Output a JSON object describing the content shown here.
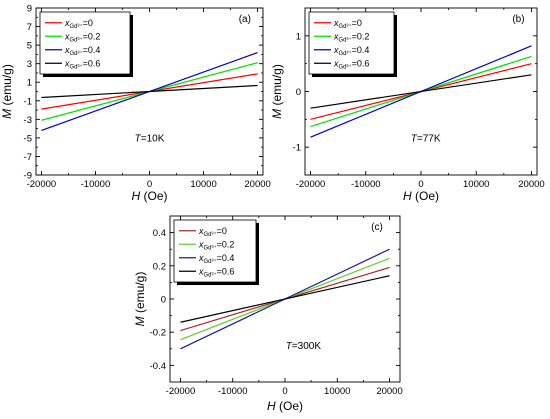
{
  "chart_data": [
    {
      "type": "line",
      "panel_label": "(a)",
      "annotation": {
        "italic": "T",
        "text": "=10K"
      },
      "xlabel": {
        "italic": "H",
        "text": " (Oe)"
      },
      "ylabel": {
        "italic": "M",
        "text": " (emu/g)"
      },
      "xlim": [
        -21000,
        21000
      ],
      "ylim": [
        -9,
        9
      ],
      "xticks": [
        -20000,
        -10000,
        0,
        10000,
        20000
      ],
      "yticks": [
        -9,
        -7,
        -5,
        -3,
        -1,
        1,
        3,
        5,
        7,
        9
      ],
      "legend_position": "top-left",
      "series": [
        {
          "name": {
            "base": "x",
            "sub": "Gd³⁺",
            "value": "=0"
          },
          "color": "#ff0000",
          "x": [
            -20000,
            20000
          ],
          "y": [
            -1.9,
            1.9
          ]
        },
        {
          "name": {
            "base": "x",
            "sub": "Gd³⁺",
            "value": "=0.2"
          },
          "color": "#00e000",
          "x": [
            -20000,
            20000
          ],
          "y": [
            -3.1,
            3.1
          ]
        },
        {
          "name": {
            "base": "x",
            "sub": "Gd³⁺",
            "value": "=0.4"
          },
          "color": "#0000c8",
          "x": [
            -20000,
            20000
          ],
          "y": [
            -4.2,
            4.2
          ]
        },
        {
          "name": {
            "base": "x",
            "sub": "Gd³⁺",
            "value": "=0.6"
          },
          "color": "#000000",
          "x": [
            -20000,
            20000
          ],
          "y": [
            -0.65,
            0.65
          ]
        }
      ]
    },
    {
      "type": "line",
      "panel_label": "(b)",
      "annotation": {
        "italic": "T",
        "text": "=77K"
      },
      "xlabel": {
        "italic": "H",
        "text": " (Oe)"
      },
      "ylabel": {
        "italic": "M",
        "text": " (emu/g)"
      },
      "xlim": [
        -21000,
        21000
      ],
      "ylim": [
        -1.5,
        1.5
      ],
      "xticks": [
        -20000,
        -10000,
        0,
        10000,
        20000
      ],
      "yticks": [
        -1,
        0,
        1
      ],
      "legend_position": "top-left",
      "series": [
        {
          "name": {
            "base": "x",
            "sub": "Gd³⁺",
            "value": "=0"
          },
          "color": "#ff0000",
          "x": [
            -20000,
            20000
          ],
          "y": [
            -0.5,
            0.5
          ]
        },
        {
          "name": {
            "base": "x",
            "sub": "Gd³⁺",
            "value": "=0.2"
          },
          "color": "#00e000",
          "x": [
            -20000,
            20000
          ],
          "y": [
            -0.63,
            0.63
          ]
        },
        {
          "name": {
            "base": "x",
            "sub": "Gd³⁺",
            "value": "=0.4"
          },
          "color": "#0000c8",
          "x": [
            -20000,
            20000
          ],
          "y": [
            -0.82,
            0.82
          ]
        },
        {
          "name": {
            "base": "x",
            "sub": "Gd³⁺",
            "value": "=0.6"
          },
          "color": "#000000",
          "x": [
            -20000,
            20000
          ],
          "y": [
            -0.3,
            0.3
          ]
        }
      ]
    },
    {
      "type": "line",
      "panel_label": "(c)",
      "annotation": {
        "italic": "T",
        "text": "=300K"
      },
      "xlabel": {
        "italic": "H",
        "text": " (Oe)"
      },
      "ylabel": {
        "italic": "M",
        "text": " (emu/g)"
      },
      "xlim": [
        -22000,
        22000
      ],
      "ylim": [
        -0.5,
        0.5
      ],
      "xticks": [
        -20000,
        -10000,
        0,
        10000,
        20000
      ],
      "yticks": [
        -0.4,
        -0.2,
        0,
        0.2,
        0.4
      ],
      "legend_position": "top-left",
      "series": [
        {
          "name": {
            "base": "x",
            "sub": "Gd³⁺",
            "value": "=0"
          },
          "color": "#a52a2a",
          "x": [
            -20000,
            20000
          ],
          "y": [
            -0.19,
            0.19
          ]
        },
        {
          "name": {
            "base": "x",
            "sub": "Gd³⁺",
            "value": "=0.2"
          },
          "color": "#66cc33",
          "x": [
            -20000,
            20000
          ],
          "y": [
            -0.245,
            0.245
          ]
        },
        {
          "name": {
            "base": "x",
            "sub": "Gd³⁺",
            "value": "=0.4"
          },
          "color": "#1a1aa6",
          "x": [
            -20000,
            20000
          ],
          "y": [
            -0.3,
            0.3
          ]
        },
        {
          "name": {
            "base": "x",
            "sub": "Gd³⁺",
            "value": "=0.6"
          },
          "color": "#000000",
          "x": [
            -20000,
            20000
          ],
          "y": [
            -0.14,
            0.14
          ]
        }
      ]
    }
  ]
}
